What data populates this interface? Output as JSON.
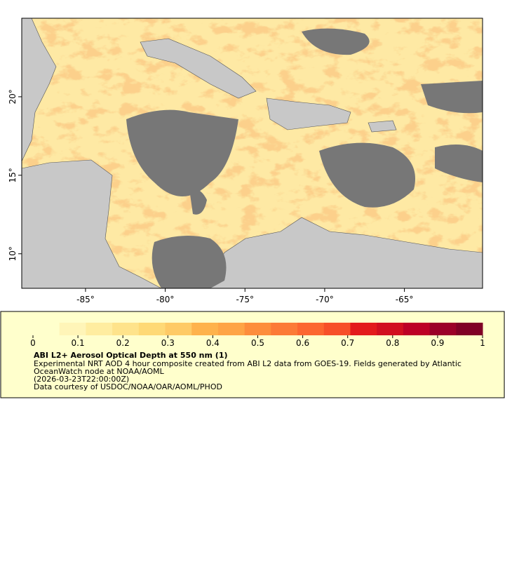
{
  "map": {
    "xlim": [
      -89,
      -60.1
    ],
    "ylim": [
      7.8,
      25
    ],
    "xticks": [
      {
        "value": -85,
        "label": "-85°"
      },
      {
        "value": -80,
        "label": "-80°"
      },
      {
        "value": -75,
        "label": "-75°"
      },
      {
        "value": -70,
        "label": "-70°"
      },
      {
        "value": -65,
        "label": "-65°"
      }
    ],
    "yticks": [
      {
        "value": 10,
        "label": "10°"
      },
      {
        "value": 15,
        "label": "15°"
      },
      {
        "value": 20,
        "label": "20°"
      }
    ]
  },
  "colorbar": {
    "range": [
      0,
      1
    ],
    "ticks": [
      0,
      0.1,
      0.2,
      0.3,
      0.4,
      0.5,
      0.6,
      0.7,
      0.8,
      0.9,
      1
    ],
    "colors": [
      "#ffffcc",
      "#fff5b8",
      "#ffeda0",
      "#fee38b",
      "#fed976",
      "#feca66",
      "#feb24c",
      "#fea446",
      "#fd8d3c",
      "#fc7a37",
      "#fc6630",
      "#f74f29",
      "#e31a1c",
      "#d10f20",
      "#bd0026",
      "#9b0028",
      "#800026"
    ]
  },
  "legend": {
    "title": "ABI L2+ Aerosol Optical Depth at 550 nm (1)",
    "lines": [
      "Experimental NRT AOD 4 hour composite created from ABI L2 data from GOES-19. Fields generated by Atlantic",
      "OceanWatch node at NOAA/AOML",
      "(2026-03-23T22:00:00Z)",
      "Data courtesy of USDOC/NOAA/OAR/AOML/PHOD"
    ]
  }
}
